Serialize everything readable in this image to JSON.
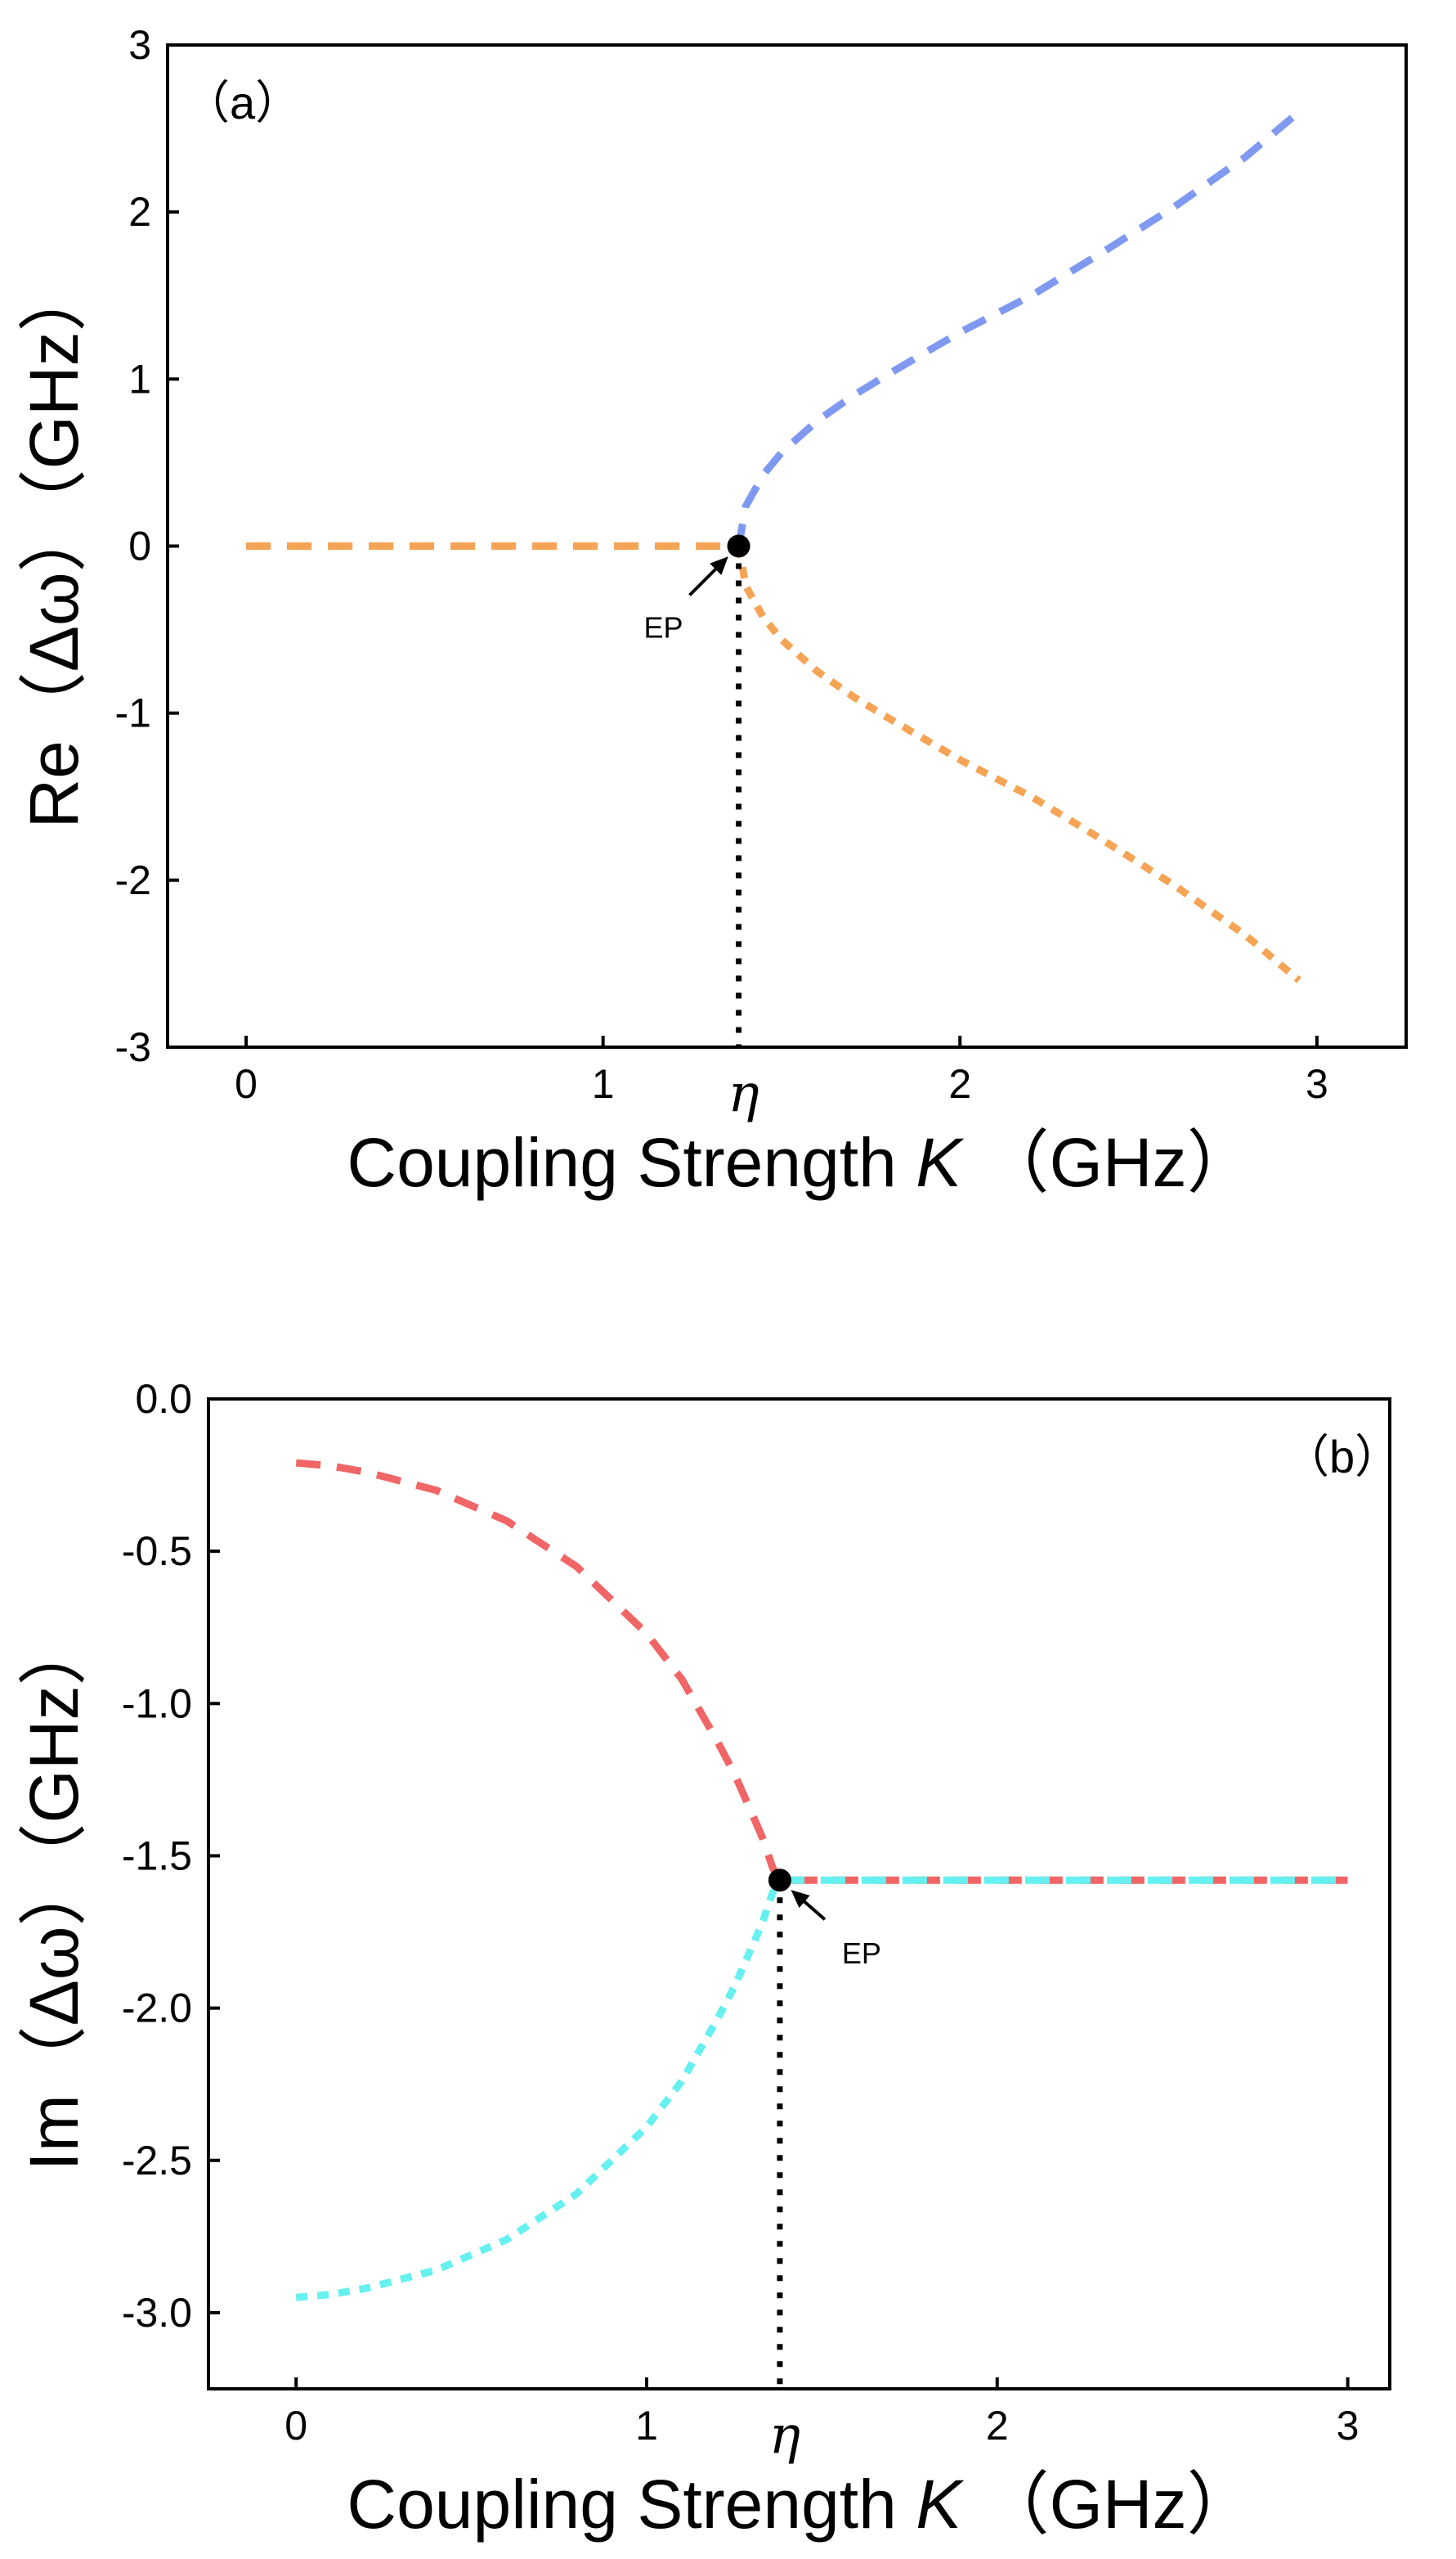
{
  "figure": {
    "background": "#ffffff",
    "frame_color": "#000000"
  },
  "chart_data": [
    {
      "type": "line",
      "panel_label": "（a）",
      "xlabel": "Coupling Strength",
      "xlabel_var": "K",
      "xlabel_unit": "（GHz）",
      "ylabel": "Re（Δω）（GHz）",
      "xlim": [
        -0.22,
        3.25
      ],
      "ylim": [
        -3,
        3
      ],
      "xticks": [
        {
          "value": 0,
          "label": "0"
        },
        {
          "value": 1,
          "label": "1"
        },
        {
          "value": 2,
          "label": "2"
        },
        {
          "value": 3,
          "label": "3"
        }
      ],
      "yticks": [
        {
          "value": -3,
          "label": "-3"
        },
        {
          "value": -2,
          "label": "-2"
        },
        {
          "value": -1,
          "label": "-1"
        },
        {
          "value": 0,
          "label": "0"
        },
        {
          "value": 1,
          "label": "1"
        },
        {
          "value": 2,
          "label": "2"
        },
        {
          "value": 3,
          "label": "3"
        }
      ],
      "eta": {
        "value": 1.38,
        "label": "η"
      },
      "ep": {
        "x": 1.38,
        "y": 0,
        "label": "EP"
      },
      "series": [
        {
          "name": "Re upper branch",
          "color": "#8099f0",
          "dash": "long",
          "x": [
            0,
            0.25,
            0.5,
            0.75,
            1.0,
            1.25,
            1.38,
            1.4,
            1.45,
            1.5,
            1.6,
            1.7,
            1.8,
            2.0,
            2.2,
            2.4,
            2.6,
            2.8,
            2.95
          ],
          "y": [
            0,
            0,
            0,
            0,
            0,
            0,
            0,
            0.24,
            0.43,
            0.56,
            0.75,
            0.9,
            1.03,
            1.28,
            1.5,
            1.76,
            2.03,
            2.33,
            2.6
          ]
        },
        {
          "name": "Re lower branch",
          "color": "#f5a455",
          "dash": "short",
          "x": [
            1.38,
            1.4,
            1.45,
            1.5,
            1.6,
            1.7,
            1.8,
            2.0,
            2.2,
            2.4,
            2.6,
            2.8,
            2.95
          ],
          "y": [
            0,
            -0.24,
            -0.43,
            -0.56,
            -0.75,
            -0.9,
            -1.03,
            -1.28,
            -1.5,
            -1.76,
            -2.03,
            -2.33,
            -2.6
          ]
        },
        {
          "name": "Re degenerate (orange overlay)",
          "color": "#f5a455",
          "dash": "long",
          "x": [
            0,
            0.25,
            0.5,
            0.75,
            1.0,
            1.25,
            1.38
          ],
          "y": [
            0,
            0,
            0,
            0,
            0,
            0,
            0
          ]
        }
      ]
    },
    {
      "type": "line",
      "panel_label": "（b）",
      "xlabel": "Coupling Strength",
      "xlabel_var": "K",
      "xlabel_unit": "（GHz）",
      "ylabel": "Im（Δω）（GHz）",
      "xlim": [
        -0.25,
        3.12
      ],
      "ylim": [
        -3.25,
        0
      ],
      "xticks": [
        {
          "value": 0,
          "label": "0"
        },
        {
          "value": 1,
          "label": "1"
        },
        {
          "value": 2,
          "label": "2"
        },
        {
          "value": 3,
          "label": "3"
        }
      ],
      "yticks": [
        {
          "value": 0,
          "label": "0.0"
        },
        {
          "value": -0.5,
          "label": "-0.5"
        },
        {
          "value": -1.0,
          "label": "-1.0"
        },
        {
          "value": -1.5,
          "label": "-1.5"
        },
        {
          "value": -2.0,
          "label": "-2.0"
        },
        {
          "value": -2.5,
          "label": "-2.5"
        },
        {
          "value": -3.0,
          "label": "-3.0"
        }
      ],
      "eta": {
        "value": 1.38,
        "label": "η"
      },
      "ep": {
        "x": 1.38,
        "y": -1.58,
        "label": "EP"
      },
      "series": [
        {
          "name": "Im upper branch",
          "color": "#f06565",
          "dash": "long",
          "x": [
            0,
            0.1,
            0.2,
            0.4,
            0.6,
            0.8,
            1.0,
            1.1,
            1.2,
            1.25,
            1.3,
            1.33,
            1.36,
            1.38,
            1.6,
            1.8,
            2.0,
            2.2,
            2.4,
            2.6,
            2.8,
            3.0
          ],
          "y": [
            -0.21,
            -0.22,
            -0.24,
            -0.3,
            -0.4,
            -0.55,
            -0.77,
            -0.92,
            -1.12,
            -1.23,
            -1.36,
            -1.44,
            -1.54,
            -1.58,
            -1.58,
            -1.58,
            -1.58,
            -1.58,
            -1.58,
            -1.58,
            -1.58,
            -1.58
          ]
        },
        {
          "name": "Im lower branch",
          "color": "#66f0f0",
          "dash": "short",
          "x": [
            0,
            0.1,
            0.2,
            0.4,
            0.6,
            0.8,
            1.0,
            1.1,
            1.2,
            1.25,
            1.3,
            1.33,
            1.36,
            1.38
          ],
          "y": [
            -2.95,
            -2.94,
            -2.92,
            -2.86,
            -2.76,
            -2.61,
            -2.39,
            -2.24,
            -2.04,
            -1.93,
            -1.8,
            -1.72,
            -1.62,
            -1.58
          ]
        },
        {
          "name": "Im degenerate (cyan overlay)",
          "color": "#66f0f0",
          "dash": "long",
          "x": [
            1.38,
            1.6,
            1.8,
            2.0,
            2.2,
            2.4,
            2.6,
            2.8,
            3.0
          ],
          "y": [
            -1.58,
            -1.58,
            -1.58,
            -1.58,
            -1.58,
            -1.58,
            -1.58,
            -1.58,
            -1.58
          ]
        }
      ]
    }
  ]
}
